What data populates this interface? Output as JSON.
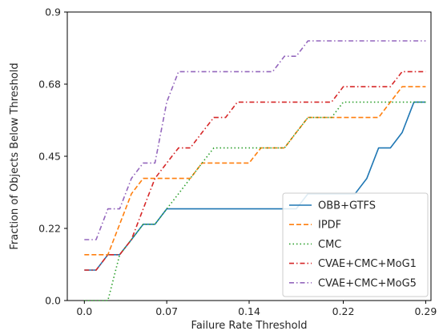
{
  "chart_data": {
    "type": "line",
    "title": "",
    "xlabel": "Failure Rate Threshold",
    "ylabel": "Fraction of Objects Below Threshold",
    "xlim": [
      -0.0145,
      0.2945
    ],
    "ylim": [
      0,
      0.9
    ],
    "x_ticks": [
      0.0,
      0.07,
      0.14,
      0.22,
      0.29
    ],
    "x_tick_labels": [
      "0.0",
      "0.07",
      "0.14",
      "0.22",
      "0.29"
    ],
    "y_ticks": [
      0.0,
      0.225,
      0.45,
      0.675,
      0.9
    ],
    "y_tick_labels": [
      "0.0",
      "0.22",
      "0.45",
      "0.68",
      "0.9"
    ],
    "grid": false,
    "legend_position": "bottom-right",
    "x": [
      0.0,
      0.01,
      0.02,
      0.03,
      0.04,
      0.05,
      0.06,
      0.07,
      0.08,
      0.09,
      0.1,
      0.11,
      0.12,
      0.13,
      0.14,
      0.15,
      0.16,
      0.17,
      0.18,
      0.19,
      0.2,
      0.21,
      0.22,
      0.23,
      0.24,
      0.25,
      0.26,
      0.27,
      0.28,
      0.29
    ],
    "series": [
      {
        "name": "OBB+GTFS",
        "color": "#1f77b4",
        "dash": "solid",
        "values": [
          0.095,
          0.095,
          0.143,
          0.143,
          0.19,
          0.238,
          0.238,
          0.286,
          0.286,
          0.286,
          0.286,
          0.286,
          0.286,
          0.286,
          0.286,
          0.286,
          0.286,
          0.286,
          0.286,
          0.333,
          0.333,
          0.333,
          0.333,
          0.333,
          0.381,
          0.476,
          0.476,
          0.524,
          0.619,
          0.619
        ]
      },
      {
        "name": "IPDF",
        "color": "#ff7f0e",
        "dash": "dashed",
        "values": [
          0.143,
          0.143,
          0.143,
          0.238,
          0.333,
          0.381,
          0.381,
          0.381,
          0.381,
          0.381,
          0.429,
          0.429,
          0.429,
          0.429,
          0.429,
          0.476,
          0.476,
          0.476,
          0.524,
          0.571,
          0.571,
          0.571,
          0.571,
          0.571,
          0.571,
          0.571,
          0.619,
          0.667,
          0.667,
          0.667
        ]
      },
      {
        "name": "CMC",
        "color": "#2ca02c",
        "dash": "dotted",
        "values": [
          0.0,
          0.0,
          0.0,
          0.143,
          0.19,
          0.238,
          0.238,
          0.286,
          0.333,
          0.381,
          0.429,
          0.476,
          0.476,
          0.476,
          0.476,
          0.476,
          0.476,
          0.476,
          0.524,
          0.571,
          0.571,
          0.571,
          0.619,
          0.619,
          0.619,
          0.619,
          0.619,
          0.619,
          0.619,
          0.619
        ]
      },
      {
        "name": "CVAE+CMC+MoG1",
        "color": "#d62728",
        "dash": "dashdot",
        "values": [
          0.095,
          0.095,
          0.143,
          0.143,
          0.19,
          0.286,
          0.381,
          0.429,
          0.476,
          0.476,
          0.524,
          0.571,
          0.571,
          0.619,
          0.619,
          0.619,
          0.619,
          0.619,
          0.619,
          0.619,
          0.619,
          0.619,
          0.667,
          0.667,
          0.667,
          0.667,
          0.667,
          0.714,
          0.714,
          0.714
        ]
      },
      {
        "name": "CVAE+CMC+MoG5",
        "color": "#9467bd",
        "dash": "dashdot",
        "values": [
          0.19,
          0.19,
          0.286,
          0.286,
          0.381,
          0.429,
          0.429,
          0.619,
          0.714,
          0.714,
          0.714,
          0.714,
          0.714,
          0.714,
          0.714,
          0.714,
          0.714,
          0.762,
          0.762,
          0.81,
          0.81,
          0.81,
          0.81,
          0.81,
          0.81,
          0.81,
          0.81,
          0.81,
          0.81,
          0.81
        ]
      }
    ]
  }
}
